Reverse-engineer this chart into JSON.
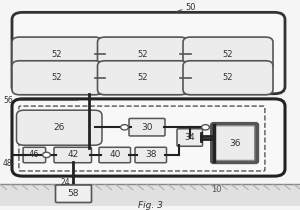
{
  "fig_label": "Fig. 3",
  "bg_color": "#f5f5f5",
  "outer_bg": "#ffffff",
  "label_50": "50",
  "label_56": "56",
  "label_48": "48",
  "label_24": "24",
  "label_10": "10",
  "tank_labels": [
    "52",
    "52",
    "52",
    "52",
    "52",
    "52"
  ],
  "component_labels": [
    "26",
    "30",
    "34",
    "36",
    "46",
    "42",
    "40",
    "38"
  ],
  "circle_color": "#888888",
  "box_color": "#cccccc",
  "line_color": "#555555",
  "thick_line_color": "#222222"
}
